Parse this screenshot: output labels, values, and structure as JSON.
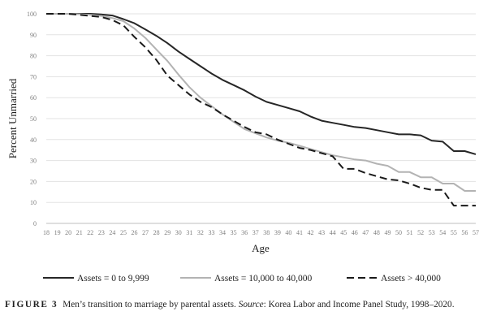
{
  "chart_data": {
    "type": "line",
    "xlabel": "Age",
    "ylabel": "Percent Unmarried",
    "ylim": [
      0,
      100
    ],
    "yticks": [
      0,
      10,
      20,
      30,
      40,
      50,
      60,
      70,
      80,
      90,
      100
    ],
    "x": [
      18,
      19,
      20,
      21,
      22,
      23,
      24,
      25,
      26,
      27,
      28,
      29,
      30,
      31,
      32,
      33,
      34,
      35,
      36,
      37,
      38,
      39,
      40,
      41,
      42,
      43,
      44,
      45,
      46,
      47,
      48,
      49,
      50,
      51,
      52,
      53,
      54,
      55,
      56,
      57
    ],
    "grid": true,
    "legend_position": "bottom",
    "series": [
      {
        "name": "Assets = 0 to 9,999",
        "color": "#262626",
        "dash": "solid",
        "values": [
          100,
          100,
          100,
          100,
          100,
          99.7,
          99.2,
          97.5,
          95.5,
          92.5,
          89.5,
          86,
          82,
          78.5,
          75,
          71.5,
          68.5,
          66,
          63.5,
          60.5,
          58,
          56.5,
          55,
          53.5,
          51,
          49,
          48,
          47,
          46,
          45.5,
          44.5,
          43.5,
          42.5,
          42.5,
          42,
          39.5,
          39,
          34.5,
          34.5,
          33
        ]
      },
      {
        "name": "Assets = 10,000 to 40,000",
        "color": "#b3b3b3",
        "dash": "solid",
        "values": [
          100,
          100,
          100,
          99.8,
          99.5,
          99,
          98,
          96.5,
          93,
          88.5,
          83,
          77.5,
          71,
          65,
          60,
          56,
          52,
          48.5,
          45,
          43,
          41,
          39.5,
          38.5,
          37,
          35.5,
          34,
          32.5,
          31.5,
          30.5,
          30,
          28.5,
          27.5,
          24.5,
          24.5,
          22,
          22,
          19,
          19,
          15.5,
          15.5
        ]
      },
      {
        "name": "Assets > 40,000",
        "color": "#1a1a1a",
        "dash": "dashed",
        "values": [
          100,
          100,
          100,
          99.5,
          99,
          98.5,
          97,
          94.5,
          89,
          84,
          78,
          70.5,
          66,
          61.5,
          58,
          55.5,
          52,
          49,
          46,
          43.5,
          42.5,
          40,
          38,
          36,
          35,
          33.5,
          32,
          26,
          26,
          24,
          22.5,
          21,
          20.5,
          19,
          17,
          16,
          16,
          8.5,
          8.5,
          8.5
        ]
      }
    ]
  },
  "caption": {
    "label": "FIGURE 3",
    "text_before_source": "Men’s transition to marriage by parental assets. ",
    "source_label": "Source",
    "text_after_source": ": Korea Labor and Income Panel Study, 1998–2020."
  }
}
